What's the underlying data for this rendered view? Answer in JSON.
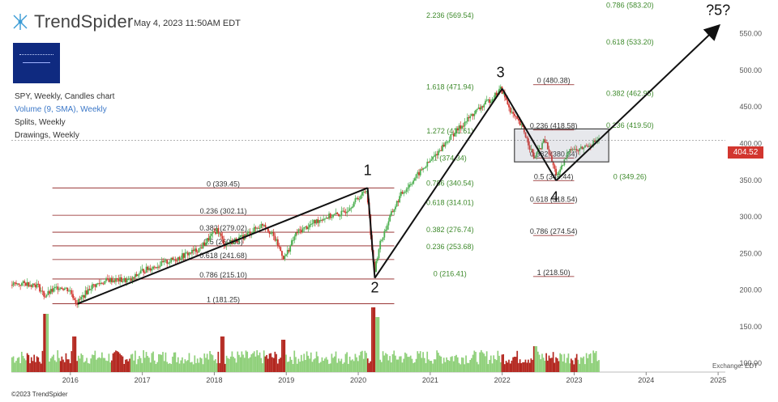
{
  "header": {
    "brand": "TrendSpider",
    "datetime": "May 4, 2023 11:50AM EDT"
  },
  "legend": {
    "symbol_line": "SPY, Weekly, Candles chart",
    "volume_line": "Volume (9, SMA), Weekly",
    "splits_line": "Splits, Weekly",
    "drawings_line": "Drawings, Weekly"
  },
  "footer": {
    "copyright": "©2023 TrendSpider",
    "exchange": "Exchange: EDT"
  },
  "colors": {
    "up": "#4caf50",
    "down": "#d2362f",
    "vol_up": "#8fd07a",
    "vol_down": "#b3261e",
    "fib_red": "#8b1a1a",
    "fib_green": "#3e9a2c",
    "arrow": "#111111",
    "box": "#444444"
  },
  "chart_data": {
    "type": "candlestick",
    "symbol": "SPY",
    "interval": "Weekly",
    "xlim": [
      2015.18,
      2025.1
    ],
    "ylim": [
      88,
      585
    ],
    "price_axis_ticks": [
      100,
      150,
      200,
      250,
      300,
      350,
      400,
      450,
      500,
      550
    ],
    "price_axis_labels": [
      "100.00",
      "150.00",
      "200.00",
      "250.00",
      "300.00",
      "350.00",
      "400.00",
      "450.00",
      "500.00",
      "550.00"
    ],
    "time_axis_ticks": [
      2016,
      2017,
      2018,
      2019,
      2020,
      2021,
      2022,
      2023,
      2024,
      2025
    ],
    "time_axis_labels": [
      "2016",
      "2017",
      "2018",
      "2019",
      "2020",
      "2021",
      "2022",
      "2023",
      "2024",
      "2025"
    ],
    "last_price": 404.52,
    "last_price_label": "404.52",
    "price_path": [
      [
        2015.18,
        207
      ],
      [
        2015.4,
        209
      ],
      [
        2015.55,
        207
      ],
      [
        2015.65,
        192
      ],
      [
        2015.85,
        205
      ],
      [
        2016.0,
        200
      ],
      [
        2016.1,
        182
      ],
      [
        2016.3,
        205
      ],
      [
        2016.55,
        214
      ],
      [
        2016.85,
        213
      ],
      [
        2017.0,
        226
      ],
      [
        2017.4,
        240
      ],
      [
        2017.8,
        256
      ],
      [
        2018.05,
        283
      ],
      [
        2018.15,
        262
      ],
      [
        2018.4,
        272
      ],
      [
        2018.7,
        291
      ],
      [
        2018.85,
        270
      ],
      [
        2018.98,
        243
      ],
      [
        2019.15,
        278
      ],
      [
        2019.5,
        298
      ],
      [
        2019.8,
        305
      ],
      [
        2020.05,
        330
      ],
      [
        2020.13,
        337
      ],
      [
        2020.2,
        255
      ],
      [
        2020.23,
        222
      ],
      [
        2020.3,
        260
      ],
      [
        2020.45,
        300
      ],
      [
        2020.6,
        330
      ],
      [
        2020.9,
        365
      ],
      [
        2021.0,
        375
      ],
      [
        2021.3,
        410
      ],
      [
        2021.6,
        440
      ],
      [
        2021.9,
        465
      ],
      [
        2021.99,
        475
      ],
      [
        2022.15,
        440
      ],
      [
        2022.3,
        420
      ],
      [
        2022.45,
        380
      ],
      [
        2022.6,
        405
      ],
      [
        2022.75,
        360
      ],
      [
        2022.8,
        358
      ],
      [
        2022.95,
        395
      ],
      [
        2023.05,
        390
      ],
      [
        2023.2,
        398
      ],
      [
        2023.34,
        404.5
      ]
    ],
    "volume_spikes": [
      [
        2015.65,
        0.9
      ],
      [
        2016.05,
        0.55
      ],
      [
        2018.1,
        0.55
      ],
      [
        2018.95,
        0.5
      ],
      [
        2020.2,
        1.0
      ],
      [
        2020.25,
        0.85
      ],
      [
        2022.45,
        0.4
      ]
    ],
    "fib_sets": [
      {
        "name": "fib-2016-2020",
        "color": "red",
        "x_start": 2015.75,
        "x_end": 2020.5,
        "levels": [
          {
            "label": "0 (339.45)",
            "price": 339.45
          },
          {
            "label": "0.236 (302.11)",
            "price": 302.11
          },
          {
            "label": "0.382 (279.02)",
            "price": 279.02
          },
          {
            "label": "0.5 (260.35)",
            "price": 260.35
          },
          {
            "label": "0.618 (241.68)",
            "price": 241.68
          },
          {
            "label": "0.786 (215.10)",
            "price": 215.1
          },
          {
            "label": "1 (181.25)",
            "price": 181.25
          }
        ]
      },
      {
        "name": "fib-extension-2020",
        "color": "green",
        "x_start": 2020.6,
        "x_end": 2021.95,
        "levels": [
          {
            "label": "2.236 (569.54)",
            "price": 569.54
          },
          {
            "label": "1.618 (471.94)",
            "price": 471.94
          },
          {
            "label": "1.272 (411.61)",
            "price": 411.61
          },
          {
            "label": "1 (374.34)",
            "price": 374.34
          },
          {
            "label": "0.786 (340.54)",
            "price": 340.54
          },
          {
            "label": "0.618 (314.01)",
            "price": 314.01
          },
          {
            "label": "0.382 (276.74)",
            "price": 276.74
          },
          {
            "label": "0.236 (253.68)",
            "price": 253.68
          },
          {
            "label": "0 (216.41)",
            "price": 216.41
          }
        ]
      },
      {
        "name": "fib-2022-retracement",
        "color": "red",
        "x_start": 2022.43,
        "x_end": 2023.0,
        "levels": [
          {
            "label": "0 (480.38)",
            "price": 480.38
          },
          {
            "label": "0.236 (418.58)",
            "price": 418.58
          },
          {
            "label": "0.382 (380.34)",
            "price": 380.34
          },
          {
            "label": "0.5 (349.44)",
            "price": 349.44
          },
          {
            "label": "0.618 (318.54)",
            "price": 318.54
          },
          {
            "label": "0.786 (274.54)",
            "price": 274.54
          },
          {
            "label": "1 (218.50)",
            "price": 218.5
          }
        ]
      },
      {
        "name": "fib-extension-2023",
        "color": "green",
        "x_start": 2023.5,
        "x_end": 2024.05,
        "levels": [
          {
            "label": "0.786 (583.20)",
            "price": 583.2
          },
          {
            "label": "0.618 (533.20)",
            "price": 533.2
          },
          {
            "label": "0.382 (462.95)",
            "price": 462.95
          },
          {
            "label": "0.236 (419.50)",
            "price": 419.5
          },
          {
            "label": "0 (349.26)",
            "price": 349.26
          }
        ]
      }
    ],
    "wave_points": [
      {
        "label": "",
        "x": 2016.1,
        "price": 181.25
      },
      {
        "label": "1",
        "x": 2020.13,
        "price": 339.45
      },
      {
        "label": "2",
        "x": 2020.23,
        "price": 216.41
      },
      {
        "label": "3",
        "x": 2022.0,
        "price": 475.0
      },
      {
        "label": "4",
        "x": 2022.75,
        "price": 349.44
      },
      {
        "label": "?5?",
        "x": 2025.0,
        "price": 560.0
      }
    ],
    "range_box": {
      "x_start": 2022.17,
      "x_end": 2023.48,
      "price_top": 420,
      "price_bottom": 375
    }
  }
}
